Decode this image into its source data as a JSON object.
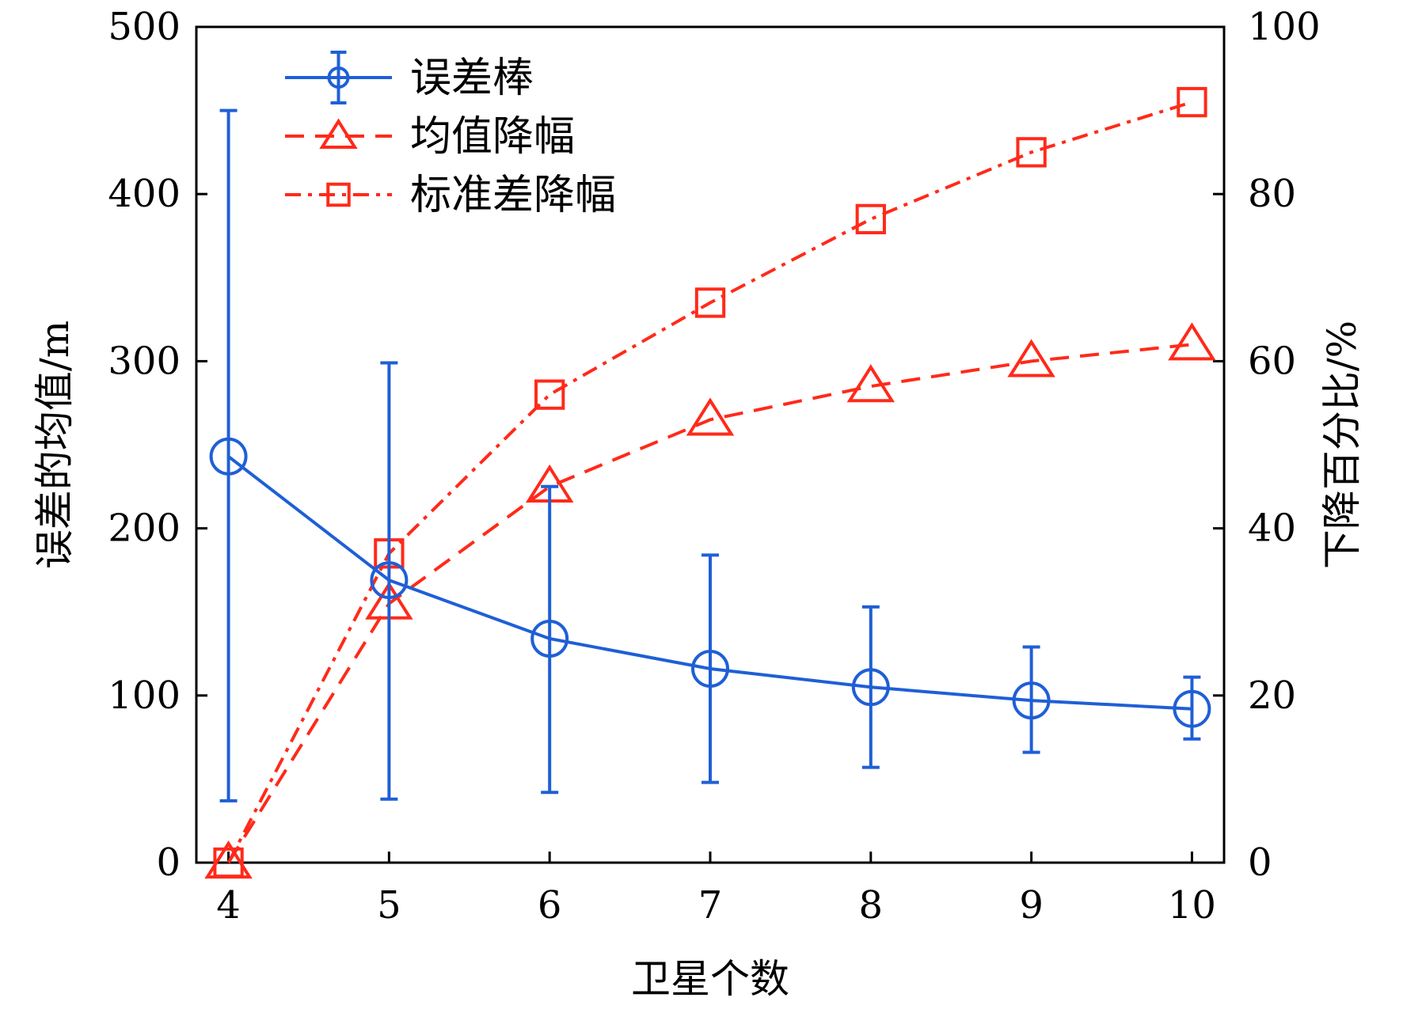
{
  "chart_data": {
    "type": "line",
    "xlabel": "卫星个数",
    "ylabel_left": "误差的均值/m",
    "ylabel_right": "下降百分比/%",
    "x": [
      4,
      5,
      6,
      7,
      8,
      9,
      10
    ],
    "x_ticks": [
      "4",
      "5",
      "6",
      "7",
      "8",
      "9",
      "10"
    ],
    "xlim": [
      3.8,
      10.2
    ],
    "ylim_left": [
      0,
      500
    ],
    "ylim_right": [
      0,
      100
    ],
    "y_ticks_left": [
      "0",
      "100",
      "200",
      "300",
      "400",
      "500"
    ],
    "y_ticks_right": [
      "0",
      "20",
      "40",
      "60",
      "80",
      "100"
    ],
    "grid": false,
    "legend_position": "top-left",
    "series": [
      {
        "name": "误差棒",
        "axis": "left",
        "style": "solid",
        "marker": "circle",
        "color": "#1f5fd6",
        "values": [
          243,
          169,
          134,
          116,
          105,
          97,
          92
        ],
        "error_low": [
          37,
          38,
          42,
          48,
          57,
          66,
          74
        ],
        "error_high": [
          450,
          299,
          225,
          184,
          153,
          129,
          111
        ]
      },
      {
        "name": "均值降幅",
        "axis": "right",
        "style": "dashed",
        "marker": "triangle",
        "color": "#ff2a1a",
        "values": [
          0,
          31,
          45,
          53,
          57,
          60,
          62
        ]
      },
      {
        "name": "标准差降幅",
        "axis": "right",
        "style": "dashdot",
        "marker": "square",
        "color": "#ff2a1a",
        "values": [
          0,
          37,
          56,
          67,
          77,
          85,
          91
        ]
      }
    ]
  }
}
